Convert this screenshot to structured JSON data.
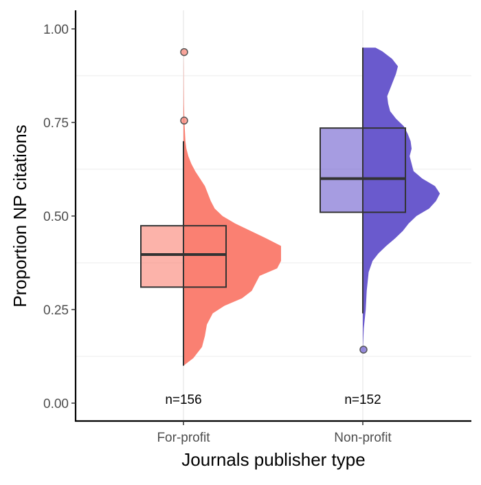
{
  "chart_data": {
    "type": "raincloud",
    "xlabel": "Journals publisher type",
    "ylabel": "Proportion NP citations",
    "ylim": [
      0,
      1
    ],
    "yticks": [
      "0.00",
      "0.25",
      "0.50",
      "0.75",
      "1.00"
    ],
    "grid": "horizontal minor + vertical major",
    "categories": [
      "For-profit",
      "Non-profit"
    ],
    "series": [
      {
        "category": "For-profit",
        "color": "#FA8072",
        "box": {
          "q1": 0.31,
          "median": 0.397,
          "q3": 0.474,
          "lower_whisker": 0.1,
          "upper_whisker": 0.7
        },
        "outliers": [
          0.755,
          0.938
        ],
        "count_label": "n=156",
        "density": [
          [
            0.1,
            0.0
          ],
          [
            0.12,
            0.1
          ],
          [
            0.15,
            0.19
          ],
          [
            0.18,
            0.22
          ],
          [
            0.21,
            0.24
          ],
          [
            0.24,
            0.3
          ],
          [
            0.26,
            0.42
          ],
          [
            0.28,
            0.6
          ],
          [
            0.3,
            0.7
          ],
          [
            0.32,
            0.74
          ],
          [
            0.34,
            0.78
          ],
          [
            0.36,
            0.96
          ],
          [
            0.38,
            1.0
          ],
          [
            0.4,
            1.0
          ],
          [
            0.42,
            1.0
          ],
          [
            0.44,
            0.85
          ],
          [
            0.46,
            0.69
          ],
          [
            0.48,
            0.53
          ],
          [
            0.5,
            0.4
          ],
          [
            0.52,
            0.32
          ],
          [
            0.54,
            0.28
          ],
          [
            0.56,
            0.25
          ],
          [
            0.58,
            0.22
          ],
          [
            0.6,
            0.17
          ],
          [
            0.62,
            0.12
          ],
          [
            0.64,
            0.08
          ],
          [
            0.66,
            0.05
          ],
          [
            0.68,
            0.03
          ],
          [
            0.7,
            0.02
          ],
          [
            0.75,
            0.01
          ],
          [
            0.8,
            0.005
          ],
          [
            0.85,
            0.003
          ],
          [
            0.9,
            0.002
          ],
          [
            0.94,
            0.0
          ]
        ]
      },
      {
        "category": "Non-profit",
        "color": "#6A5ACD",
        "box": {
          "q1": 0.51,
          "median": 0.6,
          "q3": 0.735,
          "lower_whisker": 0.24,
          "upper_whisker": 0.95
        },
        "outliers": [
          0.143
        ],
        "count_label": "n=152",
        "density": [
          [
            0.14,
            0.0
          ],
          [
            0.2,
            0.01
          ],
          [
            0.25,
            0.03
          ],
          [
            0.3,
            0.04
          ],
          [
            0.35,
            0.06
          ],
          [
            0.38,
            0.1
          ],
          [
            0.4,
            0.16
          ],
          [
            0.42,
            0.24
          ],
          [
            0.44,
            0.33
          ],
          [
            0.46,
            0.41
          ],
          [
            0.48,
            0.47
          ],
          [
            0.5,
            0.55
          ],
          [
            0.52,
            0.68
          ],
          [
            0.54,
            0.75
          ],
          [
            0.56,
            0.79
          ],
          [
            0.58,
            0.74
          ],
          [
            0.6,
            0.61
          ],
          [
            0.62,
            0.52
          ],
          [
            0.64,
            0.5
          ],
          [
            0.66,
            0.48
          ],
          [
            0.68,
            0.5
          ],
          [
            0.7,
            0.49
          ],
          [
            0.72,
            0.46
          ],
          [
            0.74,
            0.42
          ],
          [
            0.76,
            0.34
          ],
          [
            0.78,
            0.28
          ],
          [
            0.8,
            0.26
          ],
          [
            0.82,
            0.25
          ],
          [
            0.84,
            0.28
          ],
          [
            0.86,
            0.31
          ],
          [
            0.88,
            0.34
          ],
          [
            0.9,
            0.36
          ],
          [
            0.92,
            0.3
          ],
          [
            0.94,
            0.2
          ],
          [
            0.95,
            0.13
          ]
        ]
      }
    ]
  }
}
